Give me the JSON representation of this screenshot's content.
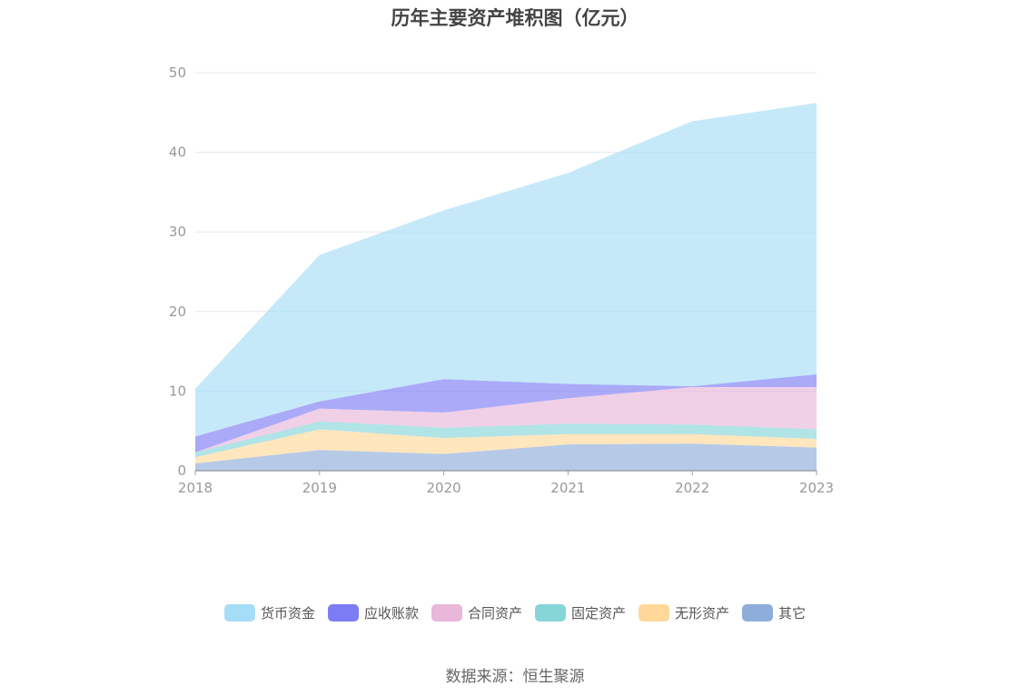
{
  "chart_data": {
    "type": "area",
    "stacked": true,
    "title": "历年主要资产堆积图（亿元）",
    "xlabel": "",
    "ylabel": "",
    "x": [
      "2018",
      "2019",
      "2020",
      "2021",
      "2022",
      "2023"
    ],
    "ylim": [
      0,
      50
    ],
    "yticks": [
      0,
      10,
      20,
      30,
      40,
      50
    ],
    "grid": true,
    "legend_position": "bottom",
    "series": [
      {
        "name": "其它",
        "color": "#8FADDB",
        "values": [
          0.9,
          2.6,
          2.1,
          3.3,
          3.4,
          2.9
        ]
      },
      {
        "name": "无形资产",
        "color": "#FFD89A",
        "values": [
          0.8,
          2.6,
          2.0,
          1.3,
          1.2,
          1.1
        ]
      },
      {
        "name": "固定资产",
        "color": "#86D6D8",
        "values": [
          0.6,
          1.0,
          1.3,
          1.3,
          1.2,
          1.2
        ]
      },
      {
        "name": "合同资产",
        "color": "#E8B7DA",
        "values": [
          0.0,
          1.6,
          1.9,
          3.2,
          4.7,
          5.3
        ]
      },
      {
        "name": "应收账款",
        "color": "#7C7CF4",
        "values": [
          2.0,
          0.9,
          4.2,
          1.8,
          0.1,
          1.6
        ]
      },
      {
        "name": "货币资金",
        "color": "#A6DDF6",
        "values": [
          6.0,
          18.4,
          21.2,
          26.5,
          33.3,
          34.1
        ]
      }
    ],
    "legend_order": [
      "货币资金",
      "应收账款",
      "合同资产",
      "固定资产",
      "无形资产",
      "其它"
    ]
  },
  "source": "数据来源：恒生聚源"
}
